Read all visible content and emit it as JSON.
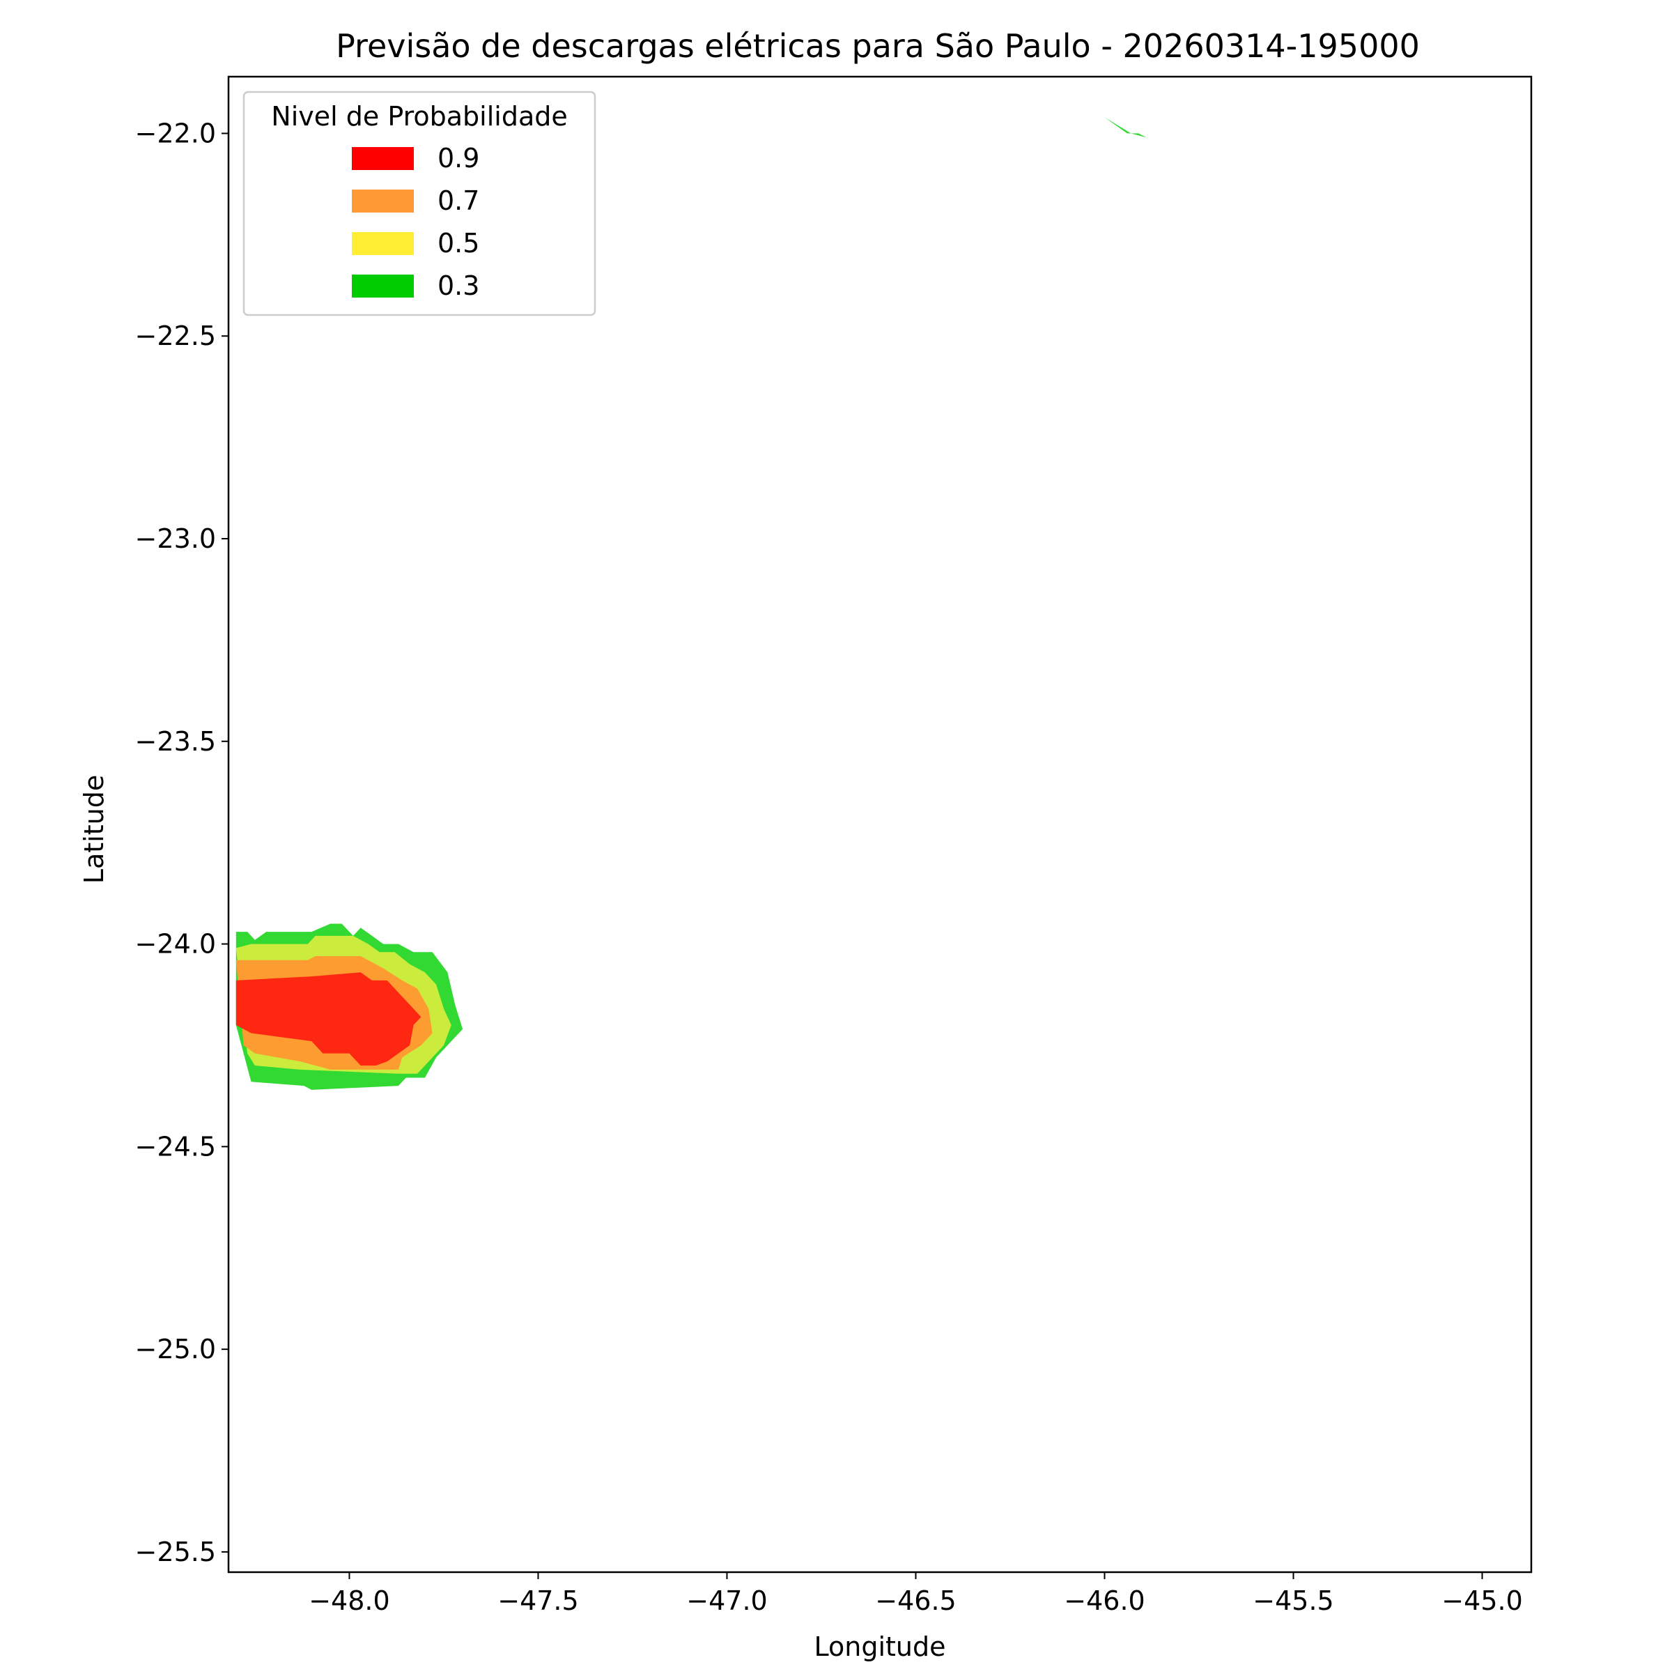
{
  "chart_data": {
    "type": "contour",
    "title": "Previsão de descargas elétricas para São Paulo - 20260314-195000",
    "xlabel": "Longitude",
    "ylabel": "Latitude",
    "xlim": [
      -48.32,
      -44.87
    ],
    "ylim": [
      -25.55,
      -21.86
    ],
    "x_ticks": [
      -48.0,
      -47.5,
      -47.0,
      -46.5,
      -46.0,
      -45.5,
      -45.0
    ],
    "y_ticks": [
      -22.0,
      -22.5,
      -23.0,
      -23.5,
      -24.0,
      -24.5,
      -25.0,
      -25.5
    ],
    "x_tick_labels": [
      "−48.0",
      "−47.5",
      "−47.0",
      "−46.5",
      "−46.0",
      "−45.5",
      "−45.0"
    ],
    "y_tick_labels": [
      "−22.0",
      "−22.5",
      "−23.0",
      "−23.5",
      "−24.0",
      "−24.5",
      "−25.0",
      "−25.5"
    ],
    "grid": false,
    "legend": {
      "title": "Nivel de Probabilidade",
      "placement": "upper-left",
      "entries": [
        {
          "label": "0.9",
          "color": "#ff0000"
        },
        {
          "label": "0.7",
          "color": "#ff9933"
        },
        {
          "label": "0.5",
          "color": "#ffee33"
        },
        {
          "label": "0.3",
          "color": "#00cc00"
        }
      ]
    },
    "contours": [
      {
        "level": "0.3",
        "color": "#33d933",
        "polygon": [
          [
            -48.3,
            -23.97
          ],
          [
            -48.27,
            -23.97
          ],
          [
            -48.25,
            -23.99
          ],
          [
            -48.22,
            -23.97
          ],
          [
            -48.1,
            -23.97
          ],
          [
            -48.05,
            -23.95
          ],
          [
            -48.02,
            -23.95
          ],
          [
            -47.99,
            -23.98
          ],
          [
            -47.97,
            -23.96
          ],
          [
            -47.94,
            -23.98
          ],
          [
            -47.91,
            -24.0
          ],
          [
            -47.87,
            -24.0
          ],
          [
            -47.83,
            -24.02
          ],
          [
            -47.78,
            -24.02
          ],
          [
            -47.74,
            -24.07
          ],
          [
            -47.72,
            -24.15
          ],
          [
            -47.7,
            -24.21
          ],
          [
            -47.73,
            -24.24
          ],
          [
            -47.77,
            -24.28
          ],
          [
            -47.8,
            -24.33
          ],
          [
            -47.85,
            -24.33
          ],
          [
            -47.87,
            -24.35
          ],
          [
            -48.1,
            -24.36
          ],
          [
            -48.12,
            -24.35
          ],
          [
            -48.26,
            -24.34
          ],
          [
            -48.3,
            -24.2
          ]
        ]
      },
      {
        "level": "0.3",
        "color": "#33d933",
        "polygon": [
          [
            -46.0,
            -21.96
          ],
          [
            -45.94,
            -22.0
          ],
          [
            -45.91,
            -22.0
          ],
          [
            -45.85,
            -22.03
          ],
          [
            -45.89,
            -22.01
          ],
          [
            -45.93,
            -22.0
          ]
        ]
      },
      {
        "level": "0.5",
        "color": "#ccec3d",
        "polygon": [
          [
            -48.3,
            -24.01
          ],
          [
            -48.26,
            -24.0
          ],
          [
            -48.11,
            -24.0
          ],
          [
            -48.09,
            -23.98
          ],
          [
            -47.99,
            -23.98
          ],
          [
            -47.95,
            -24.0
          ],
          [
            -47.92,
            -24.02
          ],
          [
            -47.88,
            -24.02
          ],
          [
            -47.84,
            -24.05
          ],
          [
            -47.8,
            -24.07
          ],
          [
            -47.77,
            -24.1
          ],
          [
            -47.75,
            -24.16
          ],
          [
            -47.73,
            -24.2
          ],
          [
            -47.75,
            -24.25
          ],
          [
            -47.78,
            -24.28
          ],
          [
            -47.82,
            -24.32
          ],
          [
            -47.87,
            -24.32
          ],
          [
            -48.13,
            -24.31
          ],
          [
            -48.25,
            -24.3
          ],
          [
            -48.27,
            -24.27
          ]
        ]
      },
      {
        "level": "0.7",
        "color": "#fd9d31",
        "polygon": [
          [
            -48.3,
            -24.04
          ],
          [
            -48.11,
            -24.04
          ],
          [
            -48.09,
            -24.03
          ],
          [
            -47.97,
            -24.03
          ],
          [
            -47.91,
            -24.06
          ],
          [
            -47.86,
            -24.09
          ],
          [
            -47.82,
            -24.11
          ],
          [
            -47.79,
            -24.16
          ],
          [
            -47.78,
            -24.22
          ],
          [
            -47.81,
            -24.25
          ],
          [
            -47.86,
            -24.28
          ],
          [
            -47.87,
            -24.31
          ],
          [
            -48.05,
            -24.31
          ],
          [
            -48.13,
            -24.29
          ],
          [
            -48.25,
            -24.27
          ],
          [
            -48.28,
            -24.25
          ]
        ]
      },
      {
        "level": "0.9",
        "color": "#fe2812",
        "polygon": [
          [
            -48.3,
            -24.09
          ],
          [
            -48.1,
            -24.08
          ],
          [
            -47.97,
            -24.07
          ],
          [
            -47.94,
            -24.09
          ],
          [
            -47.9,
            -24.09
          ],
          [
            -47.87,
            -24.12
          ],
          [
            -47.84,
            -24.15
          ],
          [
            -47.81,
            -24.18
          ],
          [
            -47.83,
            -24.2
          ],
          [
            -47.84,
            -24.25
          ],
          [
            -47.87,
            -24.27
          ],
          [
            -47.9,
            -24.29
          ],
          [
            -47.93,
            -24.3
          ],
          [
            -47.97,
            -24.3
          ],
          [
            -48.0,
            -24.27
          ],
          [
            -48.07,
            -24.27
          ],
          [
            -48.1,
            -24.24
          ],
          [
            -48.26,
            -24.22
          ],
          [
            -48.3,
            -24.2
          ]
        ]
      }
    ]
  }
}
